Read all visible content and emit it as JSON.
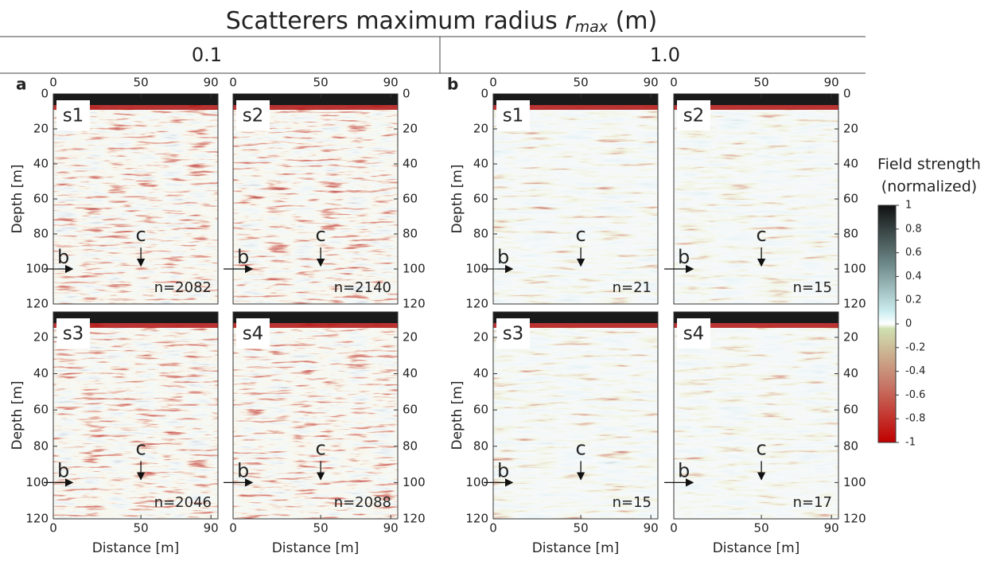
{
  "title": {
    "text": "Scatterers maximum radius ",
    "symbol": "r",
    "subscript": "max",
    "unit": " (m)"
  },
  "columns": [
    {
      "header": "0.1",
      "label": "a",
      "panels": [
        {
          "name": "s1",
          "count": "n=2082"
        },
        {
          "name": "s2",
          "count": "n=2140"
        },
        {
          "name": "s3",
          "count": "n=2046"
        },
        {
          "name": "s4",
          "count": "n=2088"
        }
      ]
    },
    {
      "header": "1.0",
      "label": "b",
      "panels": [
        {
          "name": "s1",
          "count": "n=21"
        },
        {
          "name": "s2",
          "count": "n=15"
        },
        {
          "name": "s3",
          "count": "n=15"
        },
        {
          "name": "s4",
          "count": "n=17"
        }
      ]
    }
  ],
  "axes": {
    "xlabel": "Distance [m]",
    "ylabel": "Depth [m]",
    "xlim": [
      0,
      94
    ],
    "xticks": [
      0,
      50,
      90
    ],
    "ylim_top": [
      0,
      120
    ],
    "yticks_top": [
      0,
      20,
      40,
      60,
      80,
      100,
      120
    ],
    "ylim_bottom": [
      6,
      120
    ],
    "yticks_bottom": [
      20,
      40,
      60,
      80,
      100,
      120
    ]
  },
  "markers": {
    "c": "c",
    "b": "b"
  },
  "colorbar": {
    "title": [
      "Field strength",
      "(normalized)"
    ],
    "lim": [
      -1,
      1
    ],
    "ticks": [
      1,
      0.8,
      0.6,
      0.4,
      0.2,
      0,
      -0.2,
      -0.4,
      -0.6,
      -0.8,
      -1
    ]
  }
}
